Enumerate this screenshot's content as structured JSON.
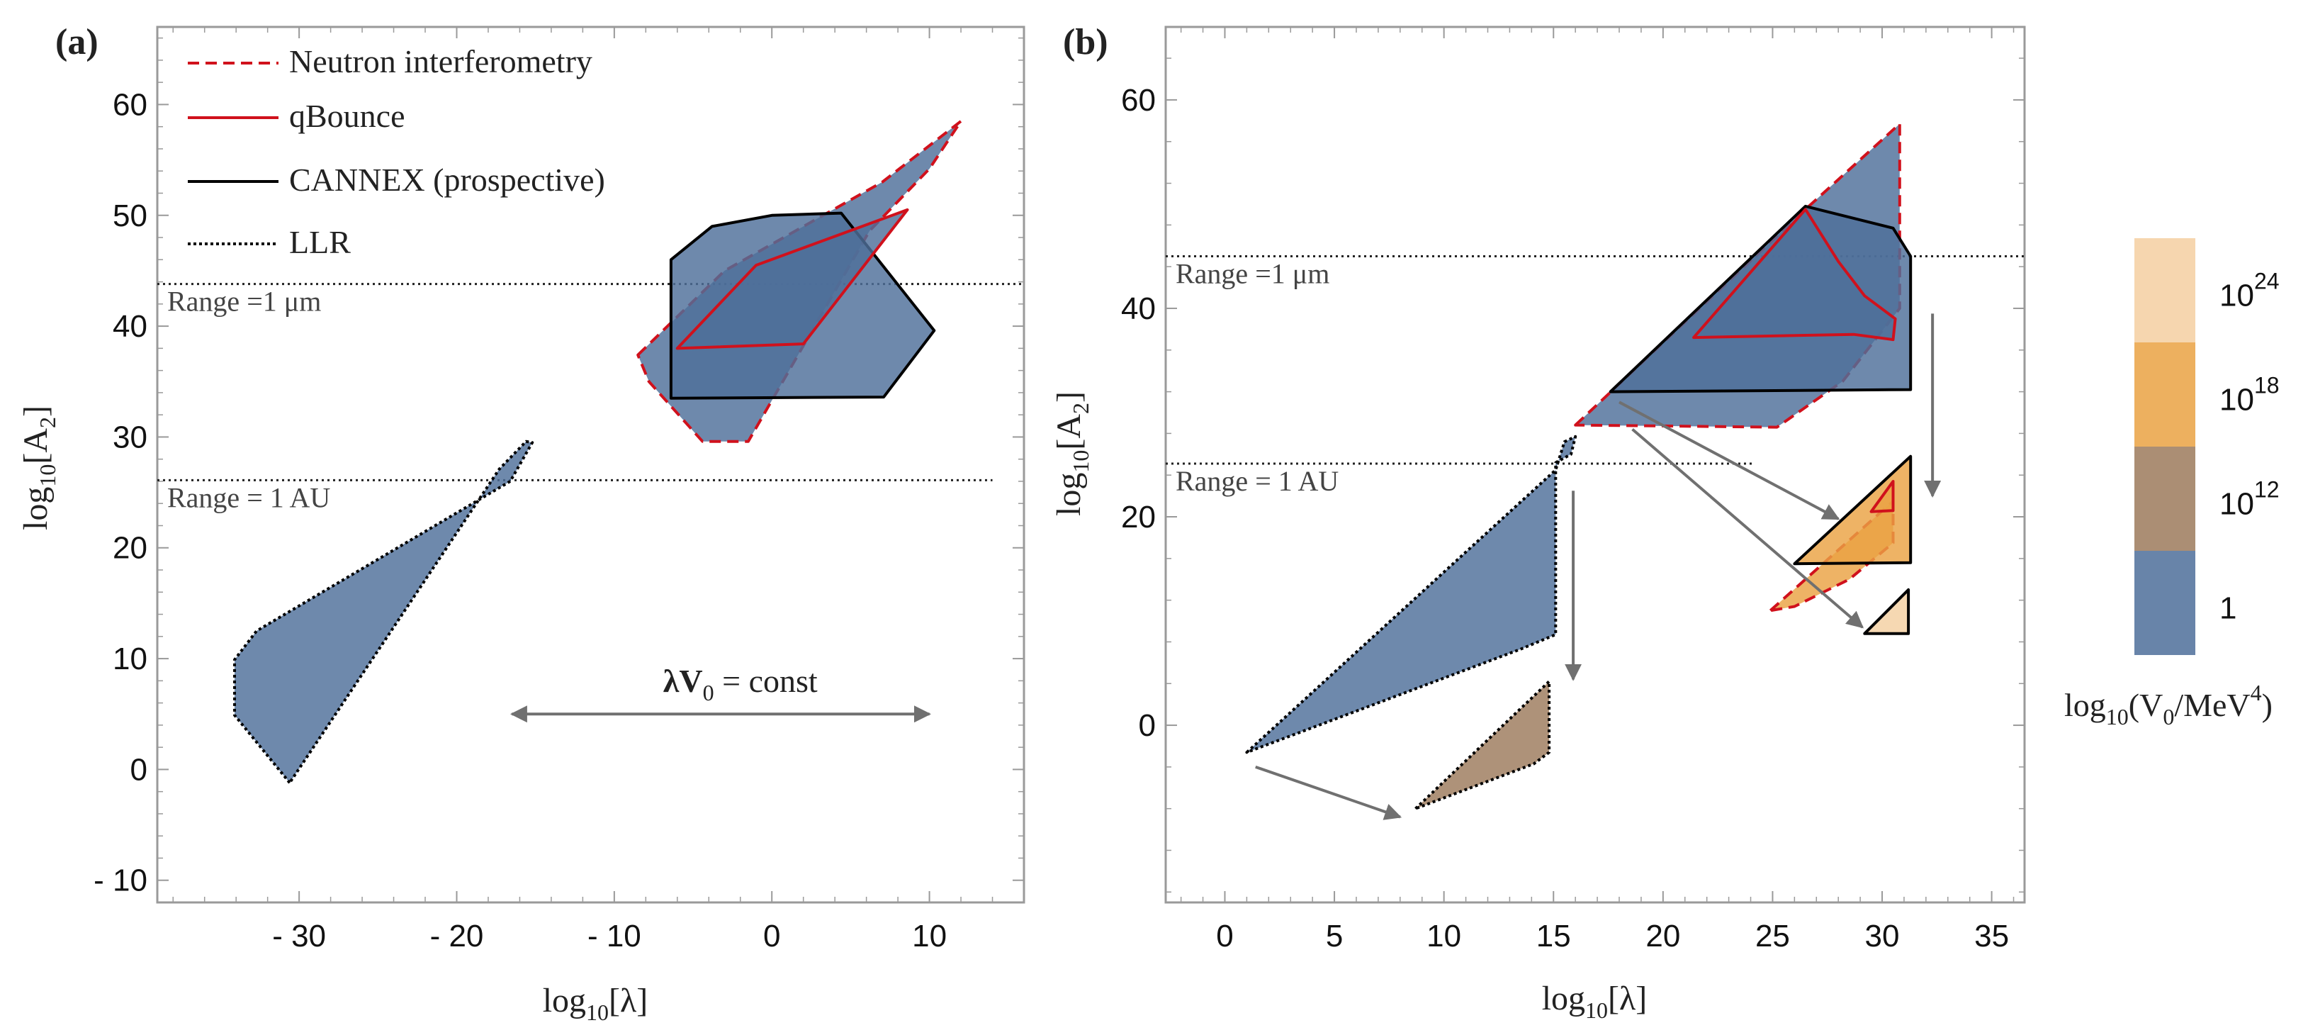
{
  "colors": {
    "blue": "#4e6f9a",
    "brown": "#9c7a5c",
    "orange": "#eaa243",
    "peach": "#f4cfa1",
    "red": "#d0111c",
    "black": "#000000",
    "arrow": "#707070",
    "frame": "#9a9a9a"
  },
  "chart_data": [
    {
      "type": "area",
      "panel": "(a)",
      "xlabel": "log",
      "xlabel_sub": "10",
      "xlabel_arg": "[λ]",
      "ylabel": "log",
      "ylabel_sub": "10",
      "ylabel_arg": "[A",
      "ylabel_arg_sub": "2",
      "ylabel_close": "]",
      "xlim": [
        -39,
        16
      ],
      "ylim": [
        -12,
        67
      ],
      "xticks": [
        -30,
        -20,
        -10,
        0,
        10
      ],
      "xtick_labels": [
        "- 30",
        "- 20",
        "- 10",
        "0",
        "10"
      ],
      "yticks": [
        -10,
        0,
        10,
        20,
        30,
        40,
        50,
        60
      ],
      "ytick_labels": [
        "- 10",
        "0",
        "10",
        "20",
        "30",
        "40",
        "50",
        "60"
      ],
      "legend": [
        {
          "label": "Neutron interferometry",
          "style": "red-dashed"
        },
        {
          "label": "qBounce",
          "style": "red-solid"
        },
        {
          "label": "CANNEX (prospective)",
          "style": "black-solid"
        },
        {
          "label": "LLR",
          "style": "black-dotted"
        }
      ],
      "reference_lines": [
        {
          "label": "Range =1 μm",
          "y": 43.8,
          "x_range": [
            -39,
            16
          ]
        },
        {
          "label": "Range = 1 AU",
          "y": 26.1,
          "x_range": [
            -39,
            14
          ]
        }
      ],
      "annotation": {
        "text": "λV",
        "text_sub": "0",
        "text_rest": " = const",
        "arrow_x": [
          -16.5,
          10
        ],
        "arrow_y": 5,
        "label_position": [
          -2,
          7
        ]
      },
      "series": [
        {
          "name": "LLR",
          "color_key": "blue",
          "style": "black-dotted",
          "points": [
            [
              -30.6,
              -1.2
            ],
            [
              -34.1,
              4.9
            ],
            [
              -34.1,
              9.9
            ],
            [
              -32.7,
              12.5
            ],
            [
              -16.6,
              26.0
            ],
            [
              -15.2,
              29.5
            ],
            [
              -15.6,
              29.6
            ],
            [
              -17.3,
              27.1
            ]
          ]
        },
        {
          "name": "Neutron interferometry",
          "color_key": "blue",
          "style": "red-dashed",
          "points": [
            [
              -8.5,
              37.4
            ],
            [
              -3.0,
              45.0
            ],
            [
              7.0,
              53.0
            ],
            [
              12.0,
              58.5
            ],
            [
              10.0,
              54.2
            ],
            [
              6.2,
              48.6
            ],
            [
              -1.5,
              29.6
            ],
            [
              -4.4,
              29.6
            ],
            [
              -7.8,
              35.0
            ]
          ]
        },
        {
          "name": "CANNEX (prospective)",
          "color_key": "blue",
          "style": "black-solid",
          "points": [
            [
              -6.4,
              33.5
            ],
            [
              -6.4,
              46.0
            ],
            [
              -3.8,
              49.0
            ],
            [
              0.0,
              50.0
            ],
            [
              4.4,
              50.2
            ],
            [
              10.3,
              39.6
            ],
            [
              7.1,
              33.6
            ]
          ]
        },
        {
          "name": "qBounce",
          "color_key": "blue",
          "style": "red-solid",
          "points": [
            [
              -6.0,
              38.0
            ],
            [
              2.0,
              38.4
            ],
            [
              8.6,
              50.5
            ],
            [
              -1.0,
              45.5
            ]
          ]
        }
      ]
    },
    {
      "type": "area",
      "panel": "(b)",
      "xlabel": "log",
      "xlabel_sub": "10",
      "xlabel_arg": "[λ]",
      "ylabel": "log",
      "ylabel_sub": "10",
      "ylabel_arg": "[A",
      "ylabel_arg_sub": "2",
      "ylabel_close": "]",
      "xlim": [
        -2.7,
        36.5
      ],
      "ylim": [
        -17,
        67
      ],
      "xticks": [
        0,
        5,
        10,
        15,
        20,
        25,
        30,
        35
      ],
      "xtick_labels": [
        "0",
        "5",
        "10",
        "15",
        "20",
        "25",
        "30",
        "35"
      ],
      "yticks": [
        0,
        20,
        40,
        60
      ],
      "ytick_labels": [
        "0",
        "20",
        "40",
        "60"
      ],
      "reference_lines": [
        {
          "label": "Range =1 μm",
          "y": 45.0,
          "x_range": [
            -2.7,
            36.5
          ]
        },
        {
          "label": "Range = 1 AU",
          "y": 25.1,
          "x_range": [
            -2.7,
            24.1
          ]
        }
      ],
      "series": [
        {
          "name": "LLR",
          "log10_V0": "1",
          "color_key": "blue",
          "style": "black-dotted",
          "points": [
            [
              1.0,
              -2.6
            ],
            [
              15.1,
              24.5
            ],
            [
              15.5,
              27.2
            ],
            [
              16.0,
              27.7
            ],
            [
              15.8,
              26.0
            ],
            [
              15.1,
              25.2
            ],
            [
              15.1,
              8.7
            ],
            [
              13.5,
              7.3
            ]
          ]
        },
        {
          "name": "LLR",
          "log10_V0": "10^12",
          "color_key": "brown",
          "style": "black-dotted",
          "points": [
            [
              8.7,
              -8.0
            ],
            [
              14.8,
              4.2
            ],
            [
              14.8,
              -2.6
            ],
            [
              14.1,
              -3.7
            ]
          ]
        },
        {
          "name": "Neutron interferometry",
          "log10_V0": "1",
          "color_key": "blue",
          "style": "red-dashed",
          "points": [
            [
              16.0,
              28.8
            ],
            [
              26.5,
              49.5
            ],
            [
              30.8,
              57.7
            ],
            [
              30.8,
              40.0
            ],
            [
              28.2,
              33.0
            ],
            [
              25.2,
              28.6
            ]
          ]
        },
        {
          "name": "CANNEX (prospective)",
          "log10_V0": "1",
          "color_key": "blue",
          "style": "black-solid",
          "points": [
            [
              17.6,
              32.0
            ],
            [
              26.5,
              49.8
            ],
            [
              30.5,
              47.7
            ],
            [
              31.3,
              45.0
            ],
            [
              31.3,
              32.2
            ]
          ]
        },
        {
          "name": "qBounce",
          "log10_V0": "1",
          "color_key": "blue",
          "style": "red-solid",
          "points": [
            [
              21.4,
              37.2
            ],
            [
              28.7,
              37.5
            ],
            [
              30.5,
              37.0
            ],
            [
              30.6,
              39.0
            ],
            [
              29.2,
              41.2
            ],
            [
              28.0,
              44.5
            ],
            [
              26.5,
              49.5
            ]
          ]
        },
        {
          "name": "Neutron interferometry",
          "log10_V0": "10^18",
          "color_key": "orange",
          "style": "red-dashed",
          "points": [
            [
              24.9,
              11.0
            ],
            [
              30.5,
              21.5
            ],
            [
              30.5,
              17.5
            ],
            [
              28.5,
              14.0
            ],
            [
              26.0,
              11.4
            ]
          ]
        },
        {
          "name": "CANNEX (prospective)",
          "log10_V0": "10^18",
          "color_key": "orange",
          "style": "black-solid",
          "points": [
            [
              26.0,
              15.5
            ],
            [
              31.3,
              25.8
            ],
            [
              31.3,
              15.6
            ]
          ]
        },
        {
          "name": "qBounce",
          "log10_V0": "10^18",
          "color_key": "orange",
          "style": "red-solid",
          "points": [
            [
              29.5,
              20.5
            ],
            [
              30.5,
              20.6
            ],
            [
              30.5,
              23.4
            ]
          ]
        },
        {
          "name": "CANNEX (prospective)",
          "log10_V0": "10^24",
          "color_key": "peach",
          "style": "black-solid",
          "points": [
            [
              29.2,
              8.8
            ],
            [
              31.2,
              13.0
            ],
            [
              31.2,
              8.8
            ]
          ]
        }
      ],
      "arrows": [
        {
          "from": [
            1.4,
            -4.0
          ],
          "to": [
            8.0,
            -8.8
          ]
        },
        {
          "from": [
            15.9,
            22.5
          ],
          "to": [
            15.9,
            4.4
          ]
        },
        {
          "from": [
            18.0,
            31.0
          ],
          "to": [
            28.0,
            19.8
          ]
        },
        {
          "from": [
            18.6,
            28.4
          ],
          "to": [
            29.1,
            9.4
          ]
        },
        {
          "from": [
            32.3,
            39.5
          ],
          "to": [
            32.3,
            22.0
          ]
        }
      ]
    }
  ],
  "colorbar": {
    "title": "log",
    "title_sub": "10",
    "title_arg": "(V",
    "title_arg_sub": "0",
    "title_rest": "/MeV",
    "title_sup": "4",
    "title_close": ")",
    "entries": [
      {
        "base": "10",
        "exp": "24",
        "color_key": "peach"
      },
      {
        "base": "10",
        "exp": "18",
        "color_key": "orange"
      },
      {
        "base": "10",
        "exp": "12",
        "color_key": "brown"
      },
      {
        "base": "1",
        "exp": "",
        "color_key": "blue"
      }
    ]
  }
}
